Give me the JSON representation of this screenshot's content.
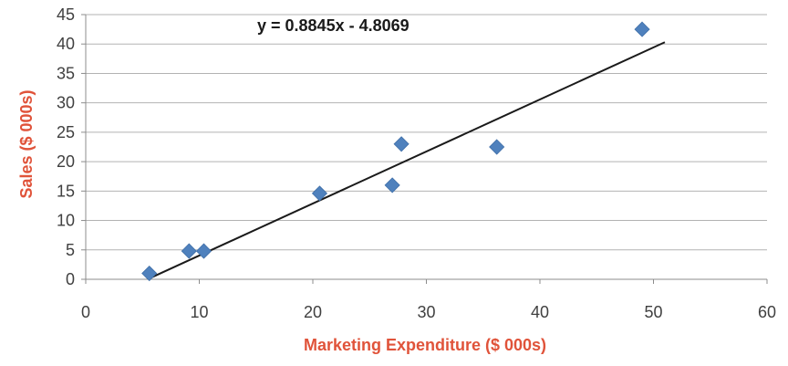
{
  "chart_data": {
    "type": "scatter",
    "title": "",
    "xlabel": "Marketing Expenditure ($ 000s)",
    "ylabel": "Sales ($ 000s)",
    "xlim": [
      0,
      60
    ],
    "ylim": [
      0,
      45
    ],
    "xticks": [
      0,
      10,
      20,
      30,
      40,
      50,
      60
    ],
    "yticks": [
      0,
      5,
      10,
      15,
      20,
      25,
      30,
      35,
      40,
      45
    ],
    "grid": "horizontal",
    "legend": "none",
    "points": [
      {
        "x": 5.6,
        "y": 1.0
      },
      {
        "x": 9.1,
        "y": 4.8
      },
      {
        "x": 10.4,
        "y": 4.8
      },
      {
        "x": 20.6,
        "y": 14.6
      },
      {
        "x": 27.0,
        "y": 16.0
      },
      {
        "x": 27.8,
        "y": 23.0
      },
      {
        "x": 36.2,
        "y": 22.5
      },
      {
        "x": 49.0,
        "y": 42.5
      }
    ],
    "trendline": {
      "equation": "y = 0.8845x - 4.8069",
      "slope": 0.8845,
      "intercept": -4.8069,
      "x_range": [
        5.6,
        51
      ]
    },
    "colors": {
      "marker": "#4f81bd",
      "trendline": "#1a1a1a",
      "axis_title": "#e0533a",
      "grid": "#b3b3b3",
      "tick_label": "#404040"
    }
  }
}
